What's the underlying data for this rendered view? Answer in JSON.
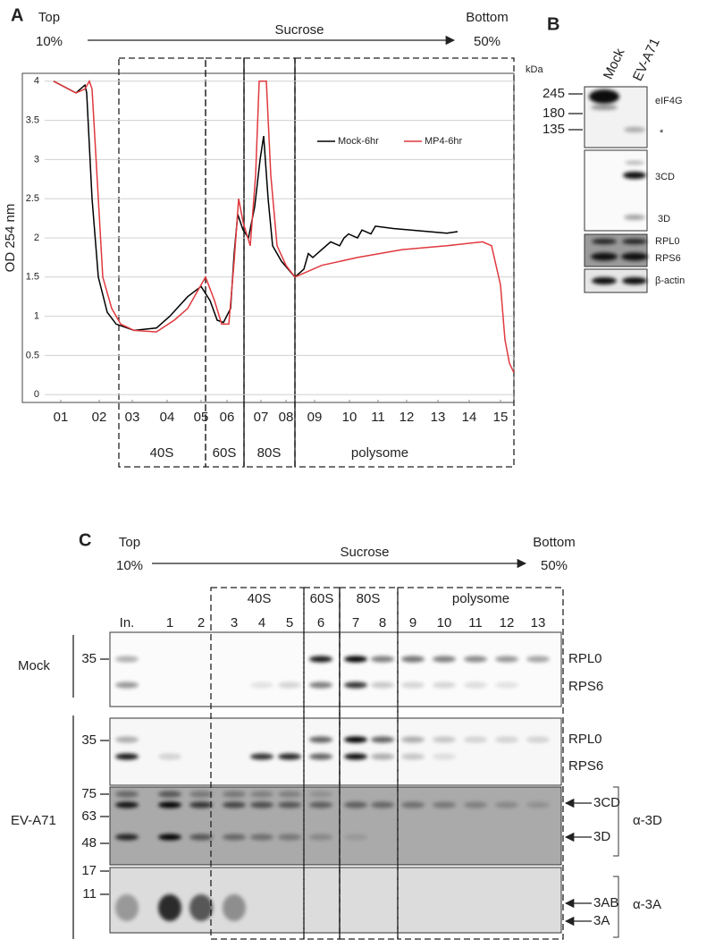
{
  "panel_a": {
    "label": "A",
    "top": "Top",
    "top_pct": "10%",
    "gradient": "Sucrose",
    "bottom": "Bottom",
    "bottom_pct": "50%",
    "regions": [
      "40S",
      "60S",
      "80S",
      "polysome"
    ]
  },
  "chart_data": {
    "type": "line",
    "y_label": "OD 254 nm",
    "xlim": [
      0,
      55
    ],
    "xticks": [
      {
        "value": 4.3,
        "label": "01"
      },
      {
        "value": 8.6,
        "label": "02"
      },
      {
        "value": 12.3,
        "label": "03"
      },
      {
        "value": 16.2,
        "label": "04"
      },
      {
        "value": 20,
        "label": "05"
      },
      {
        "value": 22.9,
        "label": "06"
      },
      {
        "value": 26.7,
        "label": "07"
      },
      {
        "value": 29.5,
        "label": "08"
      },
      {
        "value": 32.7,
        "label": "09"
      },
      {
        "value": 36.6,
        "label": "10"
      },
      {
        "value": 39.8,
        "label": "11"
      },
      {
        "value": 43,
        "label": "12"
      },
      {
        "value": 46.5,
        "label": "13"
      },
      {
        "value": 50,
        "label": "14"
      },
      {
        "value": 53.5,
        "label": "15"
      }
    ],
    "ylim": [
      -0.1,
      4.1
    ],
    "yticks": [
      0,
      0.5,
      1,
      1.5,
      2,
      2.5,
      3,
      3.5,
      4
    ],
    "grid": true,
    "legend": "upper right",
    "series": [
      {
        "name": "Mock-6hr",
        "color": "#000000",
        "x": [
          3.5,
          6,
          7,
          7.2,
          7.8,
          8.5,
          9.5,
          10.5,
          12.5,
          15,
          16.5,
          18.5,
          20,
          21,
          21.8,
          22.5,
          23.3,
          23.7,
          24.1,
          24.7,
          25.3,
          26,
          26.6,
          27,
          27.5,
          28,
          29,
          30.5,
          31.5,
          32,
          32.5,
          33.5,
          34.5,
          35.5,
          36,
          36.5,
          37.5,
          38,
          39,
          39.5,
          41.5,
          43.5,
          45.5,
          47.5,
          48.7
        ],
        "values": [
          4.0,
          3.85,
          3.95,
          3.85,
          2.5,
          1.5,
          1.05,
          0.9,
          0.82,
          0.85,
          1.0,
          1.25,
          1.38,
          1.2,
          0.95,
          0.92,
          1.1,
          1.8,
          2.3,
          2.1,
          2.0,
          2.4,
          3.0,
          3.3,
          2.5,
          1.9,
          1.7,
          1.5,
          1.6,
          1.8,
          1.75,
          1.85,
          1.95,
          1.9,
          2.0,
          2.05,
          2.0,
          2.1,
          2.05,
          2.15,
          2.12,
          2.1,
          2.08,
          2.06,
          2.08
        ]
      },
      {
        "name": "MP4-6hr",
        "color": "#e0393e",
        "x": [
          3.5,
          6,
          7,
          7.5,
          7.8,
          8.5,
          9,
          10,
          11,
          12.5,
          15,
          17,
          18.5,
          19.5,
          20.5,
          21.5,
          22.3,
          23.1,
          23.7,
          24.2,
          24.7,
          25.5,
          26.1,
          26.5,
          27.3,
          27.8,
          28.5,
          29.5,
          30.5,
          31.5,
          33.5,
          37.5,
          42.5,
          47.5,
          51.5,
          52.5,
          53.5,
          54,
          54.5,
          55
        ],
        "values": [
          4.0,
          3.85,
          3.9,
          4.0,
          3.9,
          2.5,
          1.5,
          1.1,
          0.9,
          0.82,
          0.8,
          0.95,
          1.1,
          1.3,
          1.5,
          1.2,
          0.9,
          0.9,
          1.7,
          2.5,
          2.2,
          1.9,
          2.8,
          4.0,
          4.0,
          2.8,
          1.9,
          1.65,
          1.5,
          1.55,
          1.65,
          1.75,
          1.85,
          1.9,
          1.95,
          1.9,
          1.4,
          0.7,
          0.4,
          0.28
        ]
      }
    ]
  },
  "panel_b": {
    "label": "B",
    "kda": "kDa",
    "lanes": [
      "Mock",
      "EV-A71"
    ],
    "markers": [
      "245",
      "180",
      "135"
    ],
    "bands": [
      "eIF4G",
      "*",
      "3CD",
      "3D",
      "RPL0",
      "RPS6",
      "β-actin"
    ]
  },
  "panel_c": {
    "label": "C",
    "top": "Top",
    "top_pct": "10%",
    "gradient": "Sucrose",
    "bottom": "Bottom",
    "bottom_pct": "50%",
    "regions": [
      "40S",
      "60S",
      "80S",
      "polysome"
    ],
    "lanes": [
      "In.",
      "1",
      "2",
      "3",
      "4",
      "5",
      "6",
      "7",
      "8",
      "9",
      "10",
      "11",
      "12",
      "13"
    ],
    "conditions": [
      "Mock",
      "EV-A71"
    ],
    "markers": [
      "35",
      "35",
      "75",
      "63",
      "48",
      "17",
      "11"
    ],
    "bands": [
      "RPL0",
      "RPS6",
      "RPL0",
      "RPS6",
      "3CD",
      "3D",
      "3AB",
      "3A"
    ],
    "antibodies": [
      "α-3D",
      "α-3A"
    ]
  }
}
